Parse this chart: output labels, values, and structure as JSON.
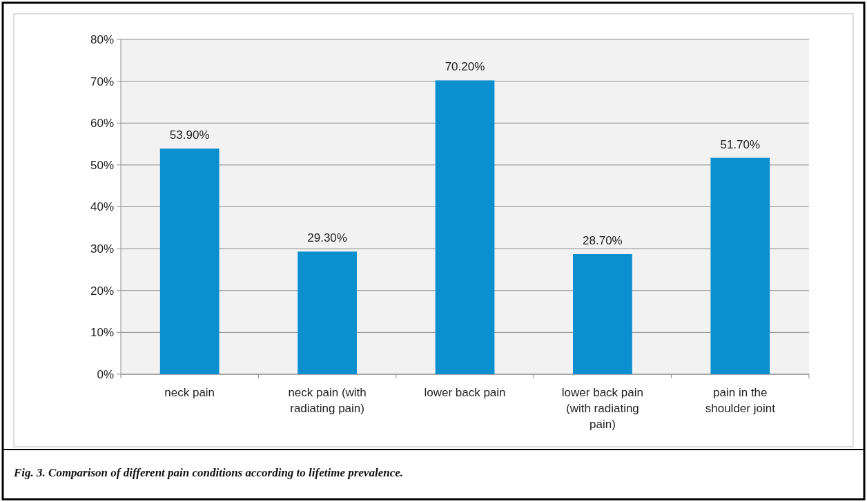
{
  "chart_data": {
    "type": "bar",
    "categories": [
      "neck pain",
      "neck pain (with radiating pain)",
      "lower back pain",
      "lower back pain (with radiating pain)",
      "pain in the shoulder joint"
    ],
    "values": [
      53.9,
      29.3,
      70.2,
      28.7,
      51.7
    ],
    "value_labels": [
      "53.90%",
      "29.30%",
      "70.20%",
      "28.70%",
      "51.70%"
    ],
    "color": "#0b8fcf",
    "ylim": [
      0,
      80
    ],
    "yticks": [
      {
        "value": 0,
        "label": "0%"
      },
      {
        "value": 10,
        "label": "10%"
      },
      {
        "value": 20,
        "label": "20%"
      },
      {
        "value": 30,
        "label": "30%"
      },
      {
        "value": 40,
        "label": "40%"
      },
      {
        "value": 50,
        "label": "50%"
      },
      {
        "value": 60,
        "label": "60%"
      },
      {
        "value": 70,
        "label": "70%"
      },
      {
        "value": 80,
        "label": "80%"
      }
    ],
    "grid": "y",
    "annotations": [
      "Fig. 3. Comparison of  different pain conditions according to lifetime prevalence."
    ]
  }
}
